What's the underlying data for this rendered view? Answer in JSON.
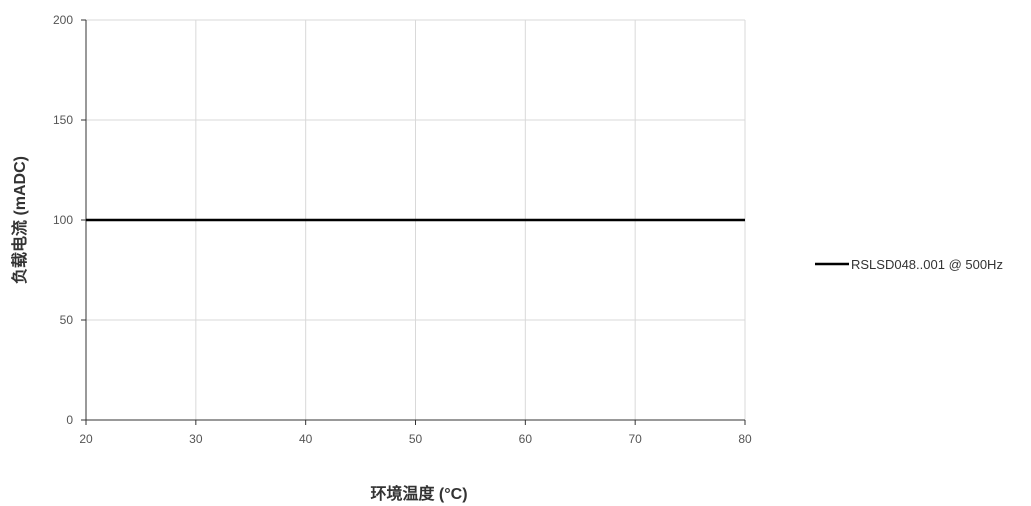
{
  "chart_data": {
    "type": "line",
    "title": "",
    "xlabel": "环境温度 (°C)",
    "ylabel": "负载电流 (mADC)",
    "xlim": [
      20,
      80
    ],
    "ylim": [
      0,
      200
    ],
    "xticks": [
      20,
      30,
      40,
      50,
      60,
      70,
      80
    ],
    "yticks": [
      0,
      50,
      100,
      150,
      200
    ],
    "grid": true,
    "legend_position": "right",
    "series": [
      {
        "name": "RSLSD048..001 @ 500Hz",
        "color": "#000000",
        "x": [
          20,
          80
        ],
        "y": [
          100,
          100
        ]
      }
    ]
  }
}
